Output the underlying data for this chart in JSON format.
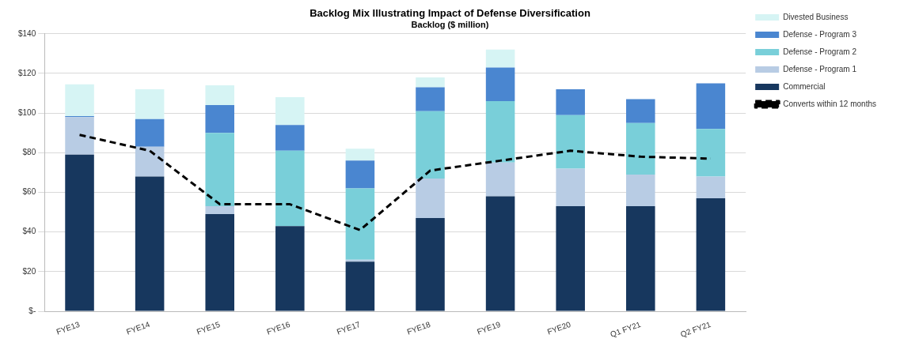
{
  "chart_data": {
    "type": "bar",
    "title": "Backlog Mix Illustrating Impact of Defense Diversification",
    "subtitle": "Backlog ($ million)",
    "stacked": true,
    "legend": "right",
    "grid": "y",
    "categories": [
      "FYE13",
      "FYE14",
      "FYE15",
      "FYE16",
      "FYE17",
      "FYE18",
      "FYE19",
      "FYE20",
      "Q1 FY21",
      "Q2 FY21"
    ],
    "ylim": [
      0,
      140
    ],
    "yticks": [
      {
        "value": 0,
        "label": "$-"
      },
      {
        "value": 20,
        "label": "$20"
      },
      {
        "value": 40,
        "label": "$40"
      },
      {
        "value": 60,
        "label": "$60"
      },
      {
        "value": 80,
        "label": "$80"
      },
      {
        "value": 100,
        "label": "$100"
      },
      {
        "value": 120,
        "label": "$120"
      },
      {
        "value": 140,
        "label": "$140"
      }
    ],
    "series": [
      {
        "name": "Commercial",
        "color": "#17375e",
        "values": [
          79,
          68,
          49,
          43,
          25,
          47,
          58,
          53,
          53,
          57
        ]
      },
      {
        "name": "Defense - Program 1",
        "color": "#b8cce4",
        "values": [
          19,
          15,
          4,
          0,
          1,
          20,
          17,
          19,
          16,
          11
        ]
      },
      {
        "name": "Defense - Program 2",
        "color": "#79cfd9",
        "values": [
          0,
          0,
          37,
          38,
          36,
          34,
          31,
          27,
          26,
          24
        ]
      },
      {
        "name": "Defense - Program 3",
        "color": "#4a86d0",
        "values": [
          0.5,
          14,
          14,
          13,
          14,
          12,
          17,
          13,
          12,
          23
        ]
      },
      {
        "name": "Divested Business",
        "color": "#d6f4f4",
        "values": [
          16,
          15,
          10,
          14,
          6,
          5,
          9,
          0,
          0,
          0
        ]
      },
      {
        "name": "Converts within 12 months",
        "type": "line",
        "color": "#000000",
        "line_style": "dashed",
        "marker": "none",
        "values": [
          89,
          81,
          54,
          54,
          41,
          71,
          76,
          81,
          78,
          77
        ]
      }
    ]
  }
}
